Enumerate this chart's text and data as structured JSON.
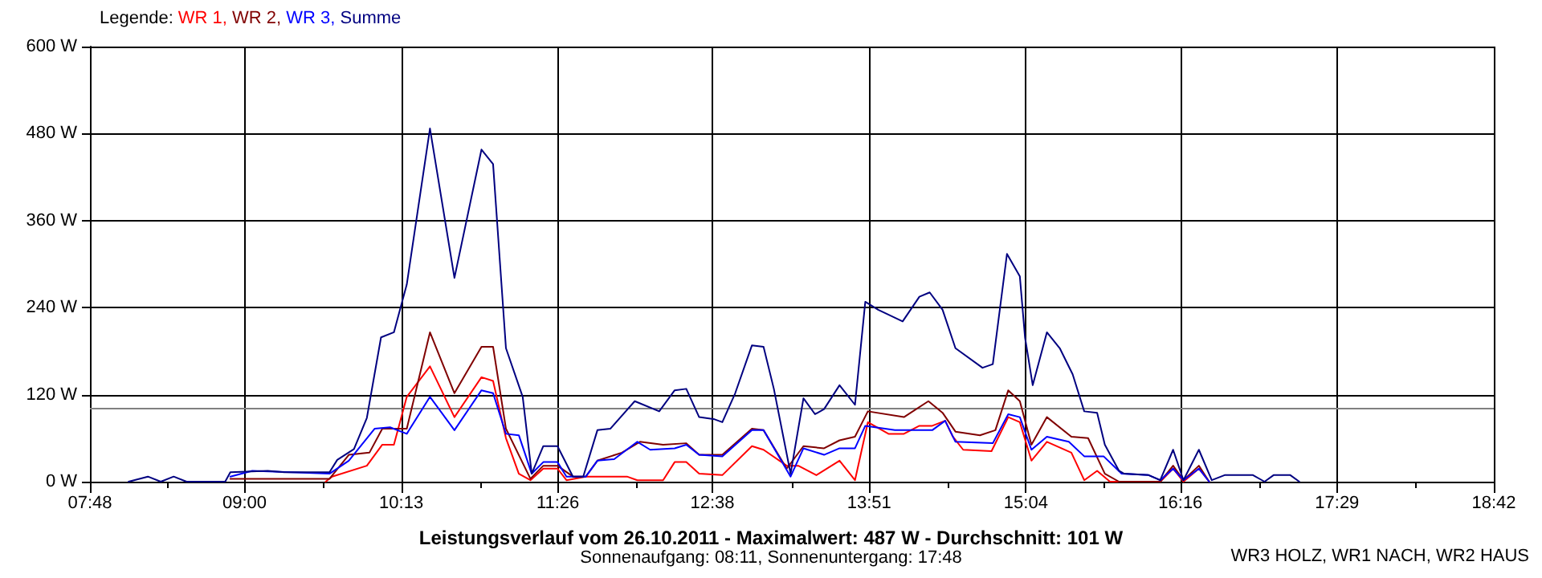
{
  "chart_data": {
    "type": "line",
    "title": "Leistungsverlauf vom 26.10.2011 - Maximalwert: 487 W - Durchschnitt: 101 W",
    "subtitle": "Sonnenaufgang: 08:11, Sonnenuntergang: 17:48",
    "legend_title": "Legende:",
    "annotations": [
      "WR3 HOLZ, WR1 NACH, WR2 HAUS"
    ],
    "xlim": [
      7.8,
      18.7
    ],
    "xticks": [
      {
        "value": 7.8,
        "label": "07:48"
      },
      {
        "value": 8.406,
        "label": null
      },
      {
        "value": 9,
        "label": "09:00"
      },
      {
        "value": 9.617,
        "label": null
      },
      {
        "value": 10.217,
        "label": "10:13"
      },
      {
        "value": 10.828,
        "label": null
      },
      {
        "value": 11.433,
        "label": "11:26"
      },
      {
        "value": 12.039,
        "label": null
      },
      {
        "value": 12.633,
        "label": "12:38"
      },
      {
        "value": 13.25,
        "label": null
      },
      {
        "value": 13.85,
        "label": "13:51"
      },
      {
        "value": 14.461,
        "label": null
      },
      {
        "value": 15.067,
        "label": "15:04"
      },
      {
        "value": 15.672,
        "label": null
      },
      {
        "value": 16.267,
        "label": "16:16"
      },
      {
        "value": 16.883,
        "label": null
      },
      {
        "value": 17.483,
        "label": "17:29"
      },
      {
        "value": 18.094,
        "label": null
      },
      {
        "value": 18.7,
        "label": "18:42"
      }
    ],
    "ylim": [
      0,
      600
    ],
    "yticks": [
      {
        "value": 0,
        "label": "0 W"
      },
      {
        "value": 120,
        "label": "120 W"
      },
      {
        "value": 240,
        "label": "240 W"
      },
      {
        "value": 360,
        "label": "360 W"
      },
      {
        "value": 480,
        "label": "480 W"
      },
      {
        "value": 600,
        "label": "600 W"
      }
    ],
    "grid": true,
    "legend": "top left",
    "marker": "none",
    "line_style": "solid",
    "ref_lines": [
      {
        "axis": "y",
        "value": 101,
        "label": null,
        "color": "#808080"
      }
    ],
    "series": [
      {
        "name": "WR 1,",
        "color": "#ff0000",
        "x": [
          9.63,
          9.68,
          9.95,
          10.07,
          10.16,
          10.26,
          10.44,
          10.63,
          10.84,
          10.93,
          11.03,
          11.13,
          11.22,
          11.32,
          11.43,
          11.5,
          11.65,
          11.75,
          11.97,
          12.05,
          12.25,
          12.34,
          12.43,
          12.53,
          12.71,
          12.94,
          13.03,
          13.21,
          13.3,
          13.44,
          13.62,
          13.74,
          13.84,
          14.0,
          14.12,
          14.24,
          14.34,
          14.44,
          14.5,
          14.58,
          14.8,
          14.93,
          15.02,
          15.11,
          15.23,
          15.42,
          15.52,
          15.62,
          15.72,
          16.11,
          16.21,
          16.29,
          16.41,
          16.49
        ],
        "values": [
          0,
          7,
          22,
          51,
          51,
          117,
          159,
          89,
          144,
          139,
          60,
          11,
          2,
          18,
          18,
          2,
          7,
          7,
          7,
          2,
          2,
          27,
          27,
          11,
          9,
          49,
          44,
          22,
          22,
          9,
          29,
          2,
          82,
          66,
          66,
          77,
          77,
          84,
          62,
          44,
          42,
          89,
          82,
          29,
          55,
          40,
          2,
          15,
          0,
          0,
          18,
          0,
          18,
          0
        ]
      },
      {
        "name": "WR 2,",
        "color": "#800000",
        "x": [
          8.89,
          9.66,
          9.81,
          9.97,
          10.07,
          10.26,
          10.44,
          10.63,
          10.84,
          10.93,
          11.03,
          11.22,
          11.32,
          11.43,
          11.55,
          11.65,
          11.74,
          11.93,
          12.07,
          12.25,
          12.43,
          12.53,
          12.71,
          12.94,
          13.03,
          13.21,
          13.34,
          13.5,
          13.62,
          13.74,
          13.84,
          14.12,
          14.31,
          14.42,
          14.52,
          14.71,
          14.83,
          14.93,
          15.02,
          15.11,
          15.23,
          15.42,
          15.55,
          15.68,
          15.79,
          16.11,
          16.21,
          16.29,
          16.41,
          16.49
        ],
        "values": [
          4,
          4,
          37,
          40,
          73,
          73,
          206,
          122,
          186,
          186,
          73,
          4,
          22,
          22,
          7,
          7,
          29,
          40,
          55,
          51,
          53,
          37,
          37,
          73,
          71,
          18,
          49,
          46,
          57,
          62,
          97,
          89,
          111,
          95,
          69,
          64,
          71,
          126,
          111,
          51,
          89,
          62,
          60,
          11,
          0,
          0,
          22,
          2,
          22,
          0
        ]
      },
      {
        "name": "WR 3,",
        "color": "#0000ff",
        "x": [
          8.89,
          9.06,
          9.66,
          9.81,
          10.01,
          10.13,
          10.26,
          10.44,
          10.63,
          10.84,
          10.93,
          11.03,
          11.13,
          11.23,
          11.32,
          11.43,
          11.5,
          11.65,
          11.74,
          11.87,
          12.05,
          12.15,
          12.34,
          12.43,
          12.53,
          12.71,
          12.94,
          13.03,
          13.24,
          13.34,
          13.5,
          13.62,
          13.74,
          13.82,
          14.05,
          14.34,
          14.44,
          14.52,
          14.81,
          14.93,
          15.02,
          15.11,
          15.23,
          15.4,
          15.52,
          15.67,
          15.81,
          16.02,
          16.11,
          16.21,
          16.29,
          16.41,
          16.49
        ],
        "values": [
          7,
          15,
          11,
          29,
          73,
          75,
          66,
          117,
          71,
          126,
          122,
          66,
          64,
          11,
          27,
          27,
          7,
          7,
          29,
          31,
          55,
          44,
          46,
          51,
          37,
          35,
          71,
          71,
          7,
          46,
          37,
          46,
          46,
          77,
          71,
          71,
          84,
          55,
          53,
          93,
          89,
          44,
          62,
          55,
          35,
          35,
          11,
          9,
          2,
          18,
          2,
          18,
          0
        ]
      },
      {
        "name": "Summe",
        "color": "#000080",
        "x": [
          8.1,
          8.25,
          8.35,
          8.45,
          8.55,
          8.85,
          8.89,
          9.18,
          9.31,
          9.66,
          9.72,
          9.85,
          9.95,
          10.06,
          10.16,
          10.26,
          10.44,
          10.63,
          10.84,
          10.93,
          11.03,
          11.16,
          11.23,
          11.32,
          11.43,
          11.55,
          11.63,
          11.74,
          11.84,
          12.03,
          12.22,
          12.34,
          12.43,
          12.53,
          12.65,
          12.71,
          12.81,
          12.94,
          13.03,
          13.11,
          13.24,
          13.34,
          13.43,
          13.5,
          13.62,
          13.74,
          13.82,
          13.92,
          14.11,
          14.24,
          14.32,
          14.42,
          14.52,
          14.73,
          14.81,
          14.92,
          15.02,
          15.06,
          15.12,
          15.23,
          15.33,
          15.43,
          15.52,
          15.62,
          15.68,
          15.79,
          15.83,
          16.02,
          16.11,
          16.21,
          16.29,
          16.41,
          16.51,
          16.61,
          16.83,
          16.92,
          16.99,
          17.12,
          17.19
        ],
        "values": [
          0,
          7,
          0,
          7,
          0,
          0,
          13,
          15,
          13,
          13,
          30,
          45,
          88,
          199,
          206,
          272,
          487,
          281,
          458,
          438,
          184,
          117,
          11,
          49,
          49,
          7,
          7,
          71,
          73,
          111,
          97,
          126,
          128,
          89,
          86,
          82,
          122,
          188,
          186,
          128,
          11,
          115,
          93,
          100,
          133,
          106,
          248,
          237,
          221,
          255,
          261,
          237,
          184,
          157,
          162,
          314,
          283,
          199,
          133,
          206,
          184,
          148,
          97,
          95,
          51,
          15,
          11,
          9,
          2,
          44,
          2,
          44,
          2,
          9,
          9,
          0,
          9,
          9,
          0
        ]
      }
    ]
  }
}
